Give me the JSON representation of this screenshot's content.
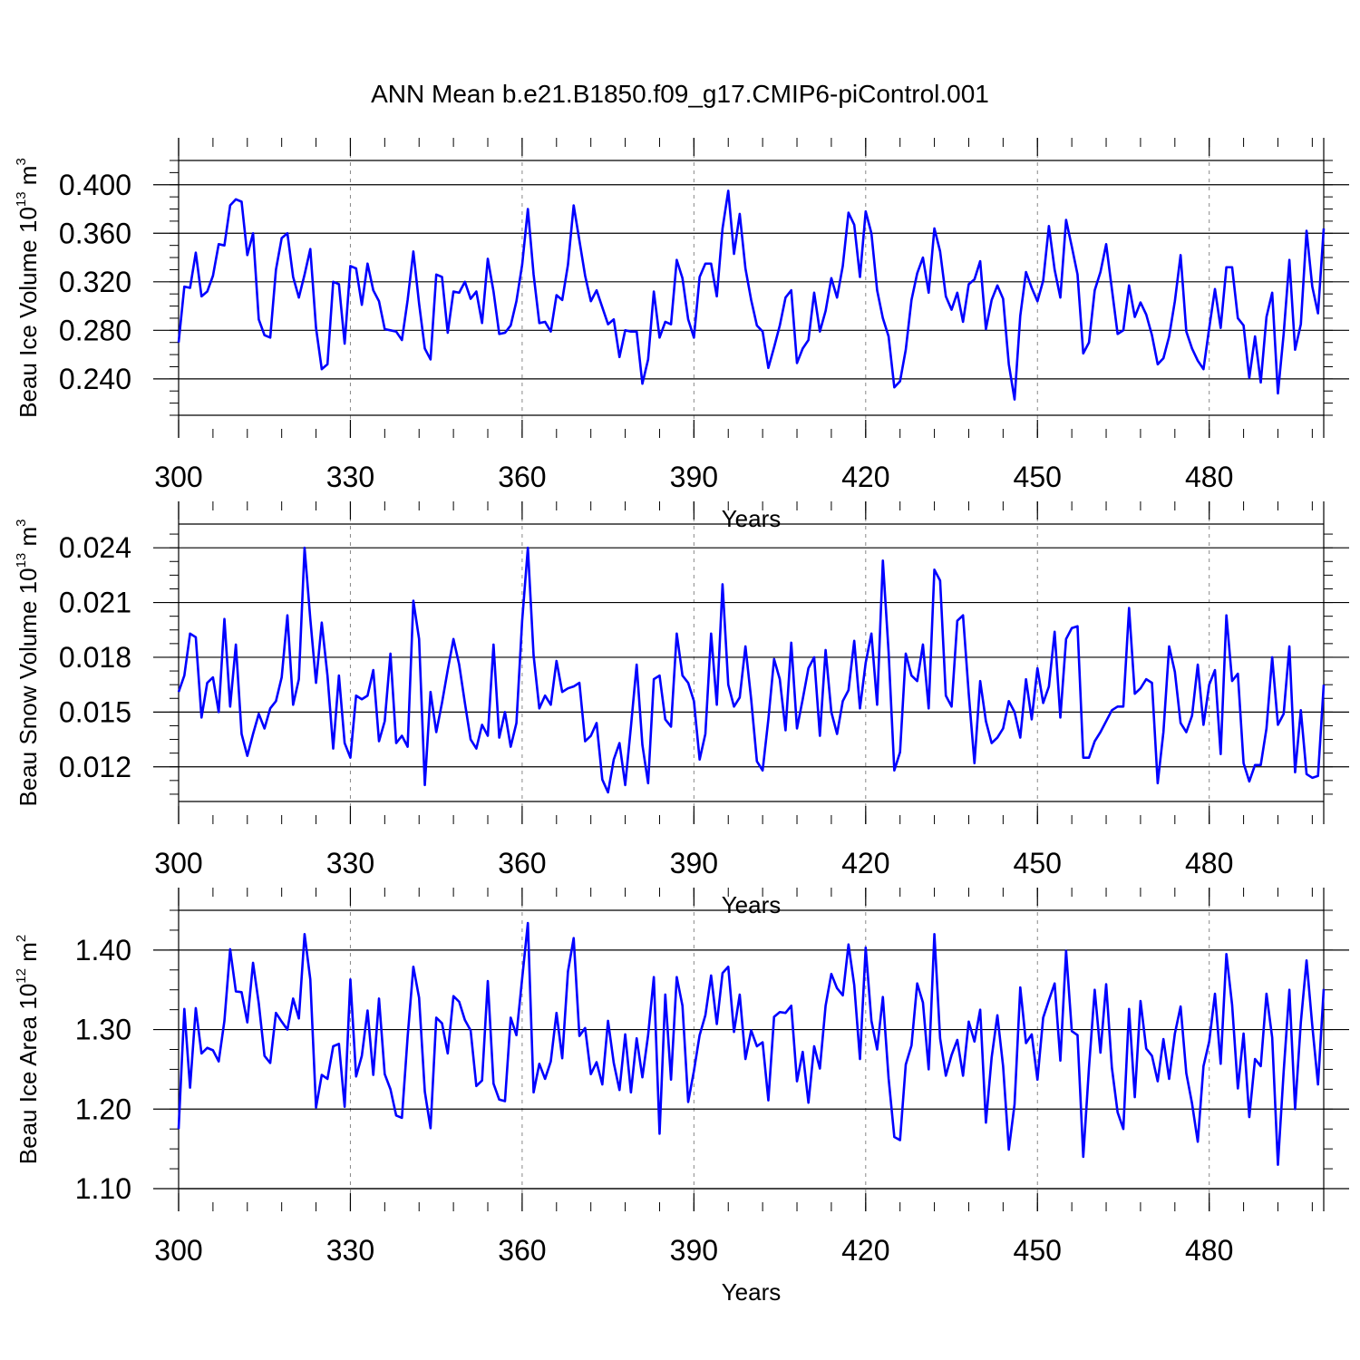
{
  "title": "ANN Mean b.e21.B1850.f09_g17.CMIP6-piControl.001",
  "chart_data": [
    {
      "type": "line",
      "xlabel": "Years",
      "ylabel_parts": [
        "Beau Ice Volume 10",
        "13",
        " m",
        "3"
      ],
      "xlim": [
        300,
        500
      ],
      "ylim": [
        0.21,
        0.42
      ],
      "xticks": [
        300,
        330,
        360,
        390,
        420,
        450,
        480
      ],
      "xtick_labels": [
        "300",
        "330",
        "360",
        "390",
        "420",
        "450",
        "480"
      ],
      "yticks": [
        0.24,
        0.28,
        0.32,
        0.36,
        0.4
      ],
      "ytick_labels": [
        "0.240",
        "0.280",
        "0.320",
        "0.360",
        "0.400"
      ],
      "grid": "vertical dashed at x ticks",
      "line_color": "#0000ff",
      "x_start": 300,
      "values": [
        0.27,
        0.316,
        0.315,
        0.344,
        0.308,
        0.312,
        0.325,
        0.351,
        0.35,
        0.383,
        0.388,
        0.386,
        0.342,
        0.36,
        0.289,
        0.276,
        0.274,
        0.33,
        0.356,
        0.36,
        0.324,
        0.307,
        0.326,
        0.347,
        0.282,
        0.248,
        0.252,
        0.32,
        0.318,
        0.269,
        0.333,
        0.331,
        0.301,
        0.335,
        0.313,
        0.304,
        0.281,
        0.28,
        0.279,
        0.272,
        0.305,
        0.345,
        0.302,
        0.265,
        0.256,
        0.326,
        0.324,
        0.278,
        0.312,
        0.311,
        0.32,
        0.306,
        0.312,
        0.286,
        0.339,
        0.312,
        0.277,
        0.278,
        0.284,
        0.304,
        0.334,
        0.38,
        0.326,
        0.286,
        0.287,
        0.279,
        0.309,
        0.305,
        0.334,
        0.383,
        0.354,
        0.325,
        0.304,
        0.313,
        0.299,
        0.285,
        0.289,
        0.258,
        0.28,
        0.279,
        0.279,
        0.236,
        0.256,
        0.312,
        0.274,
        0.287,
        0.285,
        0.338,
        0.323,
        0.289,
        0.274,
        0.324,
        0.335,
        0.335,
        0.308,
        0.364,
        0.395,
        0.343,
        0.376,
        0.331,
        0.305,
        0.284,
        0.279,
        0.249,
        0.266,
        0.284,
        0.307,
        0.313,
        0.253,
        0.265,
        0.272,
        0.311,
        0.279,
        0.296,
        0.323,
        0.307,
        0.333,
        0.377,
        0.367,
        0.324,
        0.378,
        0.36,
        0.313,
        0.29,
        0.275,
        0.233,
        0.238,
        0.264,
        0.305,
        0.327,
        0.34,
        0.311,
        0.364,
        0.345,
        0.308,
        0.297,
        0.311,
        0.287,
        0.318,
        0.322,
        0.337,
        0.281,
        0.305,
        0.317,
        0.306,
        0.252,
        0.223,
        0.292,
        0.328,
        0.315,
        0.304,
        0.321,
        0.366,
        0.33,
        0.307,
        0.371,
        0.349,
        0.326,
        0.261,
        0.27,
        0.313,
        0.328,
        0.351,
        0.314,
        0.277,
        0.28,
        0.317,
        0.291,
        0.303,
        0.293,
        0.276,
        0.252,
        0.257,
        0.275,
        0.304,
        0.342,
        0.279,
        0.265,
        0.255,
        0.248,
        0.282,
        0.314,
        0.282,
        0.332,
        0.332,
        0.29,
        0.284,
        0.241,
        0.275,
        0.237,
        0.291,
        0.311,
        0.228,
        0.277,
        0.338,
        0.264,
        0.285,
        0.362,
        0.316,
        0.294,
        0.364
      ]
    },
    {
      "type": "line",
      "xlabel": "Years",
      "ylabel_parts": [
        "Beau Snow Volume 10",
        "13",
        " m",
        "3"
      ],
      "xlim": [
        300,
        500
      ],
      "ylim": [
        0.0101,
        0.0253
      ],
      "xticks": [
        300,
        330,
        360,
        390,
        420,
        450,
        480
      ],
      "xtick_labels": [
        "300",
        "330",
        "360",
        "390",
        "420",
        "450",
        "480"
      ],
      "yticks": [
        0.012,
        0.015,
        0.018,
        0.021,
        0.024
      ],
      "ytick_labels": [
        "0.012",
        "0.015",
        "0.018",
        "0.021",
        "0.024"
      ],
      "grid": "vertical dashed at x ticks",
      "line_color": "#0000ff",
      "x_start": 300,
      "values": [
        0.0161,
        0.017,
        0.0193,
        0.0191,
        0.0147,
        0.0166,
        0.0169,
        0.015,
        0.0201,
        0.0153,
        0.0187,
        0.0138,
        0.0126,
        0.0138,
        0.0149,
        0.0141,
        0.0152,
        0.0156,
        0.0169,
        0.0203,
        0.0154,
        0.0168,
        0.024,
        0.0201,
        0.0166,
        0.0199,
        0.017,
        0.013,
        0.017,
        0.0133,
        0.0125,
        0.0159,
        0.0157,
        0.0159,
        0.0173,
        0.0134,
        0.0145,
        0.0182,
        0.0133,
        0.0137,
        0.0131,
        0.0211,
        0.019,
        0.011,
        0.0161,
        0.0139,
        0.0155,
        0.0173,
        0.019,
        0.0176,
        0.0155,
        0.0135,
        0.013,
        0.0143,
        0.0137,
        0.0187,
        0.0136,
        0.015,
        0.0131,
        0.0144,
        0.02,
        0.024,
        0.0181,
        0.0152,
        0.0159,
        0.0154,
        0.0178,
        0.0161,
        0.0163,
        0.0164,
        0.0166,
        0.0134,
        0.0137,
        0.0144,
        0.0113,
        0.0106,
        0.0124,
        0.0133,
        0.011,
        0.0142,
        0.0176,
        0.0132,
        0.0111,
        0.0168,
        0.017,
        0.0146,
        0.0142,
        0.0193,
        0.017,
        0.0166,
        0.0156,
        0.0124,
        0.0138,
        0.0193,
        0.0154,
        0.022,
        0.0165,
        0.0153,
        0.0158,
        0.0186,
        0.0157,
        0.0123,
        0.0118,
        0.0146,
        0.0179,
        0.0168,
        0.014,
        0.0188,
        0.0141,
        0.0157,
        0.0174,
        0.018,
        0.0137,
        0.0184,
        0.015,
        0.0138,
        0.0156,
        0.0162,
        0.0189,
        0.0152,
        0.0177,
        0.0193,
        0.0154,
        0.0233,
        0.0183,
        0.0118,
        0.0128,
        0.0182,
        0.017,
        0.0167,
        0.0187,
        0.0152,
        0.0228,
        0.0222,
        0.0159,
        0.0153,
        0.02,
        0.0203,
        0.016,
        0.0122,
        0.0167,
        0.0145,
        0.0133,
        0.0136,
        0.0141,
        0.0156,
        0.015,
        0.0136,
        0.0168,
        0.0146,
        0.0174,
        0.0155,
        0.0164,
        0.0194,
        0.0147,
        0.019,
        0.0196,
        0.0197,
        0.0125,
        0.0125,
        0.0134,
        0.0139,
        0.0145,
        0.0151,
        0.0153,
        0.0153,
        0.0207,
        0.016,
        0.0163,
        0.0168,
        0.0166,
        0.0111,
        0.0139,
        0.0186,
        0.0172,
        0.0144,
        0.0139,
        0.0148,
        0.0176,
        0.0143,
        0.0165,
        0.0173,
        0.0127,
        0.0203,
        0.0167,
        0.0171,
        0.0122,
        0.0112,
        0.0121,
        0.0121,
        0.0141,
        0.018,
        0.0143,
        0.0149,
        0.0186,
        0.0117,
        0.0151,
        0.0116,
        0.0114,
        0.0115,
        0.0165
      ]
    },
    {
      "type": "line",
      "xlabel": "Years",
      "ylabel_parts": [
        "Beau Ice Area 10",
        "12",
        " m",
        "2"
      ],
      "xlim": [
        300,
        500
      ],
      "ylim": [
        1.1,
        1.45
      ],
      "xticks": [
        300,
        330,
        360,
        390,
        420,
        450,
        480
      ],
      "xtick_labels": [
        "300",
        "330",
        "360",
        "390",
        "420",
        "450",
        "480"
      ],
      "yticks": [
        1.1,
        1.2,
        1.3,
        1.4
      ],
      "ytick_labels": [
        "1.10",
        "1.20",
        "1.30",
        "1.40"
      ],
      "grid": "vertical dashed at x ticks",
      "line_color": "#0000ff",
      "x_start": 300,
      "values": [
        1.175,
        1.326,
        1.227,
        1.327,
        1.27,
        1.277,
        1.274,
        1.26,
        1.311,
        1.401,
        1.348,
        1.347,
        1.309,
        1.384,
        1.333,
        1.267,
        1.258,
        1.321,
        1.31,
        1.3,
        1.339,
        1.314,
        1.42,
        1.363,
        1.202,
        1.243,
        1.238,
        1.279,
        1.282,
        1.203,
        1.363,
        1.241,
        1.267,
        1.324,
        1.243,
        1.339,
        1.244,
        1.225,
        1.192,
        1.189,
        1.291,
        1.379,
        1.34,
        1.222,
        1.176,
        1.315,
        1.308,
        1.27,
        1.342,
        1.335,
        1.312,
        1.299,
        1.229,
        1.236,
        1.361,
        1.232,
        1.212,
        1.21,
        1.315,
        1.293,
        1.364,
        1.434,
        1.221,
        1.257,
        1.238,
        1.26,
        1.321,
        1.264,
        1.373,
        1.415,
        1.292,
        1.302,
        1.244,
        1.259,
        1.231,
        1.311,
        1.258,
        1.224,
        1.294,
        1.221,
        1.289,
        1.24,
        1.293,
        1.366,
        1.169,
        1.344,
        1.237,
        1.366,
        1.33,
        1.209,
        1.248,
        1.293,
        1.318,
        1.368,
        1.307,
        1.371,
        1.379,
        1.297,
        1.344,
        1.263,
        1.299,
        1.279,
        1.284,
        1.211,
        1.316,
        1.322,
        1.321,
        1.33,
        1.235,
        1.272,
        1.208,
        1.279,
        1.251,
        1.33,
        1.37,
        1.352,
        1.343,
        1.407,
        1.356,
        1.263,
        1.403,
        1.311,
        1.275,
        1.341,
        1.239,
        1.165,
        1.161,
        1.256,
        1.28,
        1.358,
        1.334,
        1.25,
        1.42,
        1.289,
        1.242,
        1.268,
        1.287,
        1.242,
        1.31,
        1.285,
        1.325,
        1.183,
        1.265,
        1.318,
        1.254,
        1.149,
        1.206,
        1.353,
        1.283,
        1.294,
        1.237,
        1.315,
        1.337,
        1.358,
        1.261,
        1.399,
        1.298,
        1.293,
        1.14,
        1.252,
        1.35,
        1.271,
        1.357,
        1.252,
        1.196,
        1.175,
        1.326,
        1.215,
        1.336,
        1.276,
        1.267,
        1.235,
        1.288,
        1.238,
        1.295,
        1.329,
        1.245,
        1.207,
        1.159,
        1.254,
        1.285,
        1.345,
        1.257,
        1.395,
        1.331,
        1.226,
        1.295,
        1.19,
        1.263,
        1.254,
        1.345,
        1.29,
        1.13,
        1.247,
        1.35,
        1.2,
        1.309,
        1.387,
        1.305,
        1.231,
        1.351
      ]
    }
  ]
}
